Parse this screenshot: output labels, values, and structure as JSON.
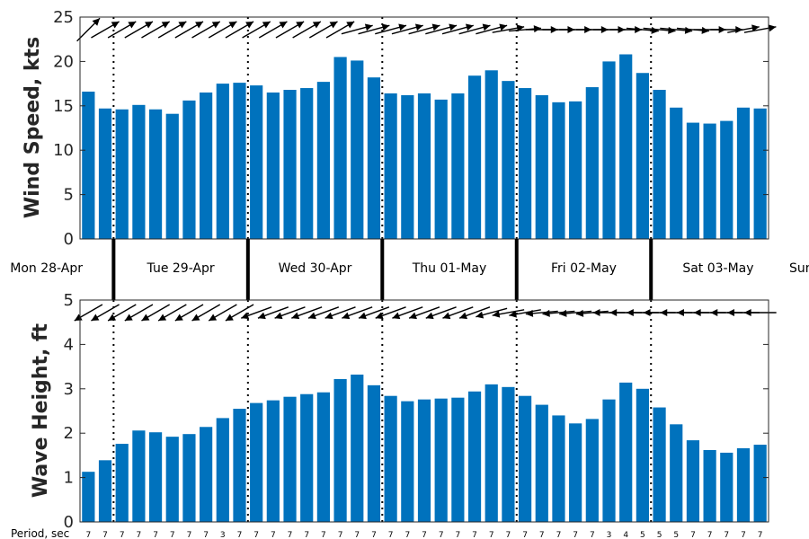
{
  "colors": {
    "bar": "#0072bd",
    "axis": "#262626",
    "arrow": "#000000"
  },
  "chart_data": [
    {
      "type": "bar",
      "ylabel": "Wind Speed, kts",
      "ylim": [
        0,
        25
      ],
      "yticks": [
        0,
        5,
        10,
        15,
        20,
        25
      ],
      "values": [
        16.6,
        14.7,
        14.6,
        15.1,
        14.6,
        14.1,
        15.6,
        16.5,
        17.5,
        17.6,
        17.3,
        16.5,
        16.8,
        17.0,
        17.7,
        20.5,
        20.1,
        18.2,
        16.4,
        16.2,
        16.4,
        15.7,
        16.4,
        18.4,
        19.0,
        17.8,
        17.0,
        16.2,
        15.4,
        15.5,
        17.1,
        20.0,
        20.8,
        18.7,
        16.8,
        14.8,
        13.1,
        13.0,
        13.3,
        14.8,
        14.7
      ],
      "direction_deg": [
        45,
        60,
        60,
        60,
        60,
        60,
        60,
        60,
        60,
        60,
        60,
        60,
        60,
        60,
        60,
        60,
        75,
        75,
        75,
        75,
        75,
        75,
        75,
        75,
        75,
        80,
        85,
        90,
        90,
        90,
        90,
        90,
        90,
        95,
        95,
        95,
        95,
        90,
        90,
        80,
        80
      ],
      "grid": false
    },
    {
      "type": "bar",
      "ylabel": "Wave Height, ft",
      "ylim": [
        0,
        5
      ],
      "yticks": [
        0,
        1,
        2,
        3,
        4,
        5
      ],
      "values": [
        1.13,
        1.39,
        1.76,
        2.06,
        2.02,
        1.92,
        1.98,
        2.14,
        2.34,
        2.55,
        2.68,
        2.74,
        2.82,
        2.88,
        2.92,
        3.22,
        3.32,
        3.08,
        2.84,
        2.72,
        2.76,
        2.78,
        2.8,
        2.94,
        3.1,
        3.04,
        2.84,
        2.64,
        2.4,
        2.22,
        2.32,
        2.76,
        3.14,
        3.0,
        2.58,
        2.2,
        1.84,
        1.62,
        1.56,
        1.66,
        1.74
      ],
      "direction_deg": [
        240,
        240,
        240,
        240,
        240,
        240,
        240,
        240,
        240,
        240,
        250,
        250,
        250,
        250,
        250,
        250,
        250,
        250,
        250,
        250,
        250,
        250,
        250,
        250,
        255,
        260,
        260,
        265,
        265,
        265,
        265,
        270,
        270,
        270,
        270,
        270,
        270,
        270,
        270,
        270,
        270
      ],
      "grid": false
    }
  ],
  "days": [
    "Mon 28-Apr",
    "Tue 29-Apr",
    "Wed 30-Apr",
    "Thu 01-May",
    "Fri 02-May",
    "Sat 03-May",
    "Sun"
  ],
  "day_boundaries": [
    1.5,
    9.5,
    17.5,
    25.5,
    33.5
  ],
  "period_title": "Period, sec",
  "periods": [
    "7",
    "7",
    "7",
    "7",
    "7",
    "7",
    "7",
    "7",
    "3",
    "7",
    "7",
    "7",
    "7",
    "7",
    "7",
    "7",
    "7",
    "7",
    "7",
    "7",
    "7",
    "7",
    "7",
    "7",
    "7",
    "7",
    "7",
    "7",
    "7",
    "7",
    "7",
    "3",
    "4",
    "5",
    "5",
    "5",
    "7",
    "7",
    "7",
    "7",
    "7"
  ]
}
